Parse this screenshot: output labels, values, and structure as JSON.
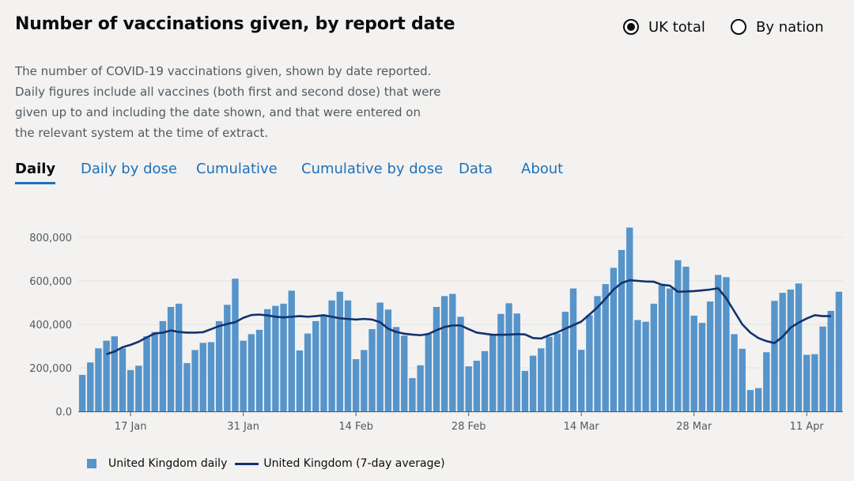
{
  "title": "Number of vaccinations given, by report date",
  "radios": [
    {
      "label": "UK total",
      "checked": true
    },
    {
      "label": "By nation",
      "checked": false
    }
  ],
  "description": "The number of COVID-19 vaccinations given, shown by date reported. Daily figures include all vaccines (both first and second dose) that were given up to and including the date shown, and that were entered on the relevant system at the time of extract.",
  "tabs": [
    {
      "label": "Daily",
      "active": true
    },
    {
      "label": "Daily by dose",
      "active": false
    },
    {
      "label": "Cumulative",
      "active": false
    },
    {
      "label": "Cumulative by dose",
      "active": false
    },
    {
      "label": "Data",
      "active": false
    },
    {
      "label": "About",
      "active": false
    }
  ],
  "colors": {
    "bar": "#5694ca",
    "line": "#12326e",
    "accent": "#1d70b8",
    "grid": "#e1e1e1"
  },
  "chart_data": {
    "type": "bar",
    "title": "",
    "xlabel": "",
    "ylabel": "",
    "x_start": "2021-01-11",
    "x_end": "2021-04-16",
    "ylim": [
      0,
      800000
    ],
    "yticks": [
      {
        "value": 0,
        "label": "0.0"
      },
      {
        "value": 200000,
        "label": "200,000"
      },
      {
        "value": 400000,
        "label": "400,000"
      },
      {
        "value": 600000,
        "label": "600,000"
      },
      {
        "value": 800000,
        "label": "800,000"
      }
    ],
    "xticks": [
      {
        "index": 6,
        "label": "17 Jan"
      },
      {
        "index": 20,
        "label": "31 Jan"
      },
      {
        "index": 34,
        "label": "14 Feb"
      },
      {
        "index": 48,
        "label": "28 Feb"
      },
      {
        "index": 62,
        "label": "14 Mar"
      },
      {
        "index": 76,
        "label": "28 Mar"
      },
      {
        "index": 90,
        "label": "11 Apr"
      }
    ],
    "series": [
      {
        "name": "United Kingdom daily",
        "kind": "bar",
        "values": [
          168000,
          225000,
          290000,
          325000,
          345000,
          290000,
          190000,
          210000,
          345000,
          365000,
          415000,
          480000,
          495000,
          222000,
          282000,
          315000,
          318000,
          415000,
          490000,
          610000,
          325000,
          355000,
          375000,
          470000,
          485000,
          495000,
          555000,
          280000,
          358000,
          415000,
          440000,
          510000,
          550000,
          510000,
          240000,
          282000,
          378000,
          500000,
          468000,
          388000,
          348000,
          153000,
          212000,
          355000,
          480000,
          530000,
          540000,
          435000,
          207000,
          233000,
          277000,
          355000,
          448000,
          497000,
          450000,
          186000,
          256000,
          290000,
          343000,
          358000,
          458000,
          565000,
          283000,
          442000,
          530000,
          585000,
          660000,
          742000,
          845000,
          420000,
          412000,
          495000,
          580000,
          565000,
          695000,
          665000,
          440000,
          407000,
          505000,
          627000,
          617000,
          355000,
          288000,
          98000,
          107000,
          272000,
          508000,
          545000,
          560000,
          588000,
          260000,
          263000,
          390000,
          462000,
          550000
        ]
      },
      {
        "name": "United Kingdom (7-day average)",
        "kind": "line",
        "values": [
          null,
          null,
          null,
          263000,
          275000,
          295000,
          306000,
          320000,
          340000,
          358000,
          362000,
          372000,
          365000,
          362000,
          362000,
          364000,
          378000,
          392000,
          402000,
          410000,
          430000,
          443000,
          445000,
          441000,
          435000,
          432000,
          435000,
          438000,
          435000,
          438000,
          442000,
          435000,
          428000,
          425000,
          422000,
          425000,
          422000,
          410000,
          380000,
          365000,
          357000,
          353000,
          350000,
          356000,
          373000,
          388000,
          395000,
          395000,
          378000,
          362000,
          357000,
          352000,
          352000,
          353000,
          355000,
          354000,
          337000,
          335000,
          350000,
          363000,
          380000,
          396000,
          413000,
          445000,
          478000,
          518000,
          560000,
          590000,
          603000,
          600000,
          597000,
          596000,
          582000,
          578000,
          550000,
          551000,
          553000,
          556000,
          560000,
          566000,
          520000,
          460000,
          400000,
          362000,
          337000,
          323000,
          314000,
          343000,
          385000,
          408000,
          427000,
          442000,
          438000,
          438000,
          null
        ]
      }
    ],
    "legend": [
      {
        "label": "United Kingdom daily",
        "kind": "bar"
      },
      {
        "label": "United Kingdom (7-day average)",
        "kind": "line"
      }
    ],
    "legend_position": "bottom-left"
  }
}
